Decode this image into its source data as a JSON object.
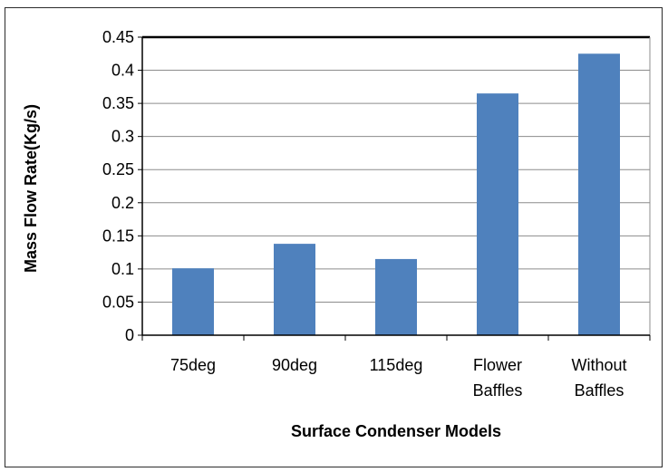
{
  "chart_data": {
    "type": "bar",
    "title": "",
    "xlabel": "Surface Condenser Models",
    "ylabel": "Mass Flow Rate(Kg/s)",
    "categories": [
      [
        "75deg"
      ],
      [
        "90deg"
      ],
      [
        "115deg"
      ],
      [
        "Flower",
        "Baffles"
      ],
      [
        "Without",
        "Baffles"
      ]
    ],
    "values": [
      0.101,
      0.138,
      0.115,
      0.365,
      0.425
    ],
    "ylim": [
      0,
      0.45
    ],
    "yticks": [
      "0",
      "0.05",
      "0.1",
      "0.15",
      "0.2",
      "0.25",
      "0.3",
      "0.35",
      "0.4",
      "0.45"
    ],
    "grid": true,
    "legend": "none",
    "bar_color": "#4f81bd"
  }
}
